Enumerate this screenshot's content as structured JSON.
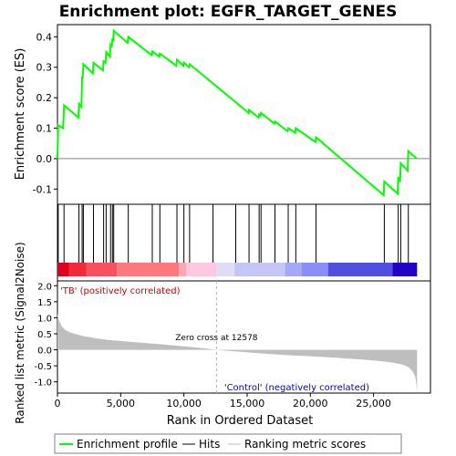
{
  "chart_data": {
    "type": "line",
    "title": "Enrichment plot: EGFR_TARGET_GENES",
    "xlabel": "Rank in Ordered Dataset",
    "es_panel": {
      "ylabel": "Enrichment score (ES)",
      "ylim": [
        -0.15,
        0.44
      ],
      "yticks": [
        -0.1,
        0.0,
        0.1,
        0.2,
        0.3,
        0.4
      ],
      "ytick_labels": [
        "-0.1",
        "0.0",
        "0.1",
        "0.2",
        "0.3",
        "0.4"
      ],
      "grid": false,
      "series_name": "Enrichment profile",
      "color": "#00ff00",
      "points": [
        [
          0,
          0.0
        ],
        [
          60,
          0.11
        ],
        [
          450,
          0.1
        ],
        [
          520,
          0.175
        ],
        [
          1650,
          0.135
        ],
        [
          1700,
          0.18
        ],
        [
          1900,
          0.17
        ],
        [
          1950,
          0.27
        ],
        [
          2000,
          0.265
        ],
        [
          2050,
          0.31
        ],
        [
          2800,
          0.28
        ],
        [
          2850,
          0.315
        ],
        [
          3600,
          0.29
        ],
        [
          3650,
          0.32
        ],
        [
          3800,
          0.315
        ],
        [
          3850,
          0.35
        ],
        [
          4150,
          0.335
        ],
        [
          4200,
          0.375
        ],
        [
          4300,
          0.37
        ],
        [
          4350,
          0.395
        ],
        [
          4400,
          0.385
        ],
        [
          4450,
          0.42
        ],
        [
          5550,
          0.38
        ],
        [
          5600,
          0.4
        ],
        [
          7450,
          0.34
        ],
        [
          7500,
          0.352
        ],
        [
          8050,
          0.335
        ],
        [
          8100,
          0.345
        ],
        [
          9400,
          0.305
        ],
        [
          9450,
          0.325
        ],
        [
          9950,
          0.305
        ],
        [
          10000,
          0.315
        ],
        [
          10400,
          0.3
        ],
        [
          10450,
          0.31
        ],
        [
          14100,
          0.185
        ],
        [
          15100,
          0.15
        ],
        [
          15150,
          0.16
        ],
        [
          15900,
          0.135
        ],
        [
          15950,
          0.145
        ],
        [
          16050,
          0.14
        ],
        [
          16100,
          0.15
        ],
        [
          17150,
          0.115
        ],
        [
          17200,
          0.122
        ],
        [
          18200,
          0.09
        ],
        [
          18250,
          0.1
        ],
        [
          18800,
          0.085
        ],
        [
          18850,
          0.1
        ],
        [
          20400,
          0.055
        ],
        [
          20450,
          0.07
        ],
        [
          25800,
          -0.12
        ],
        [
          25850,
          -0.075
        ],
        [
          26900,
          -0.115
        ],
        [
          26950,
          -0.06
        ],
        [
          27100,
          -0.075
        ],
        [
          27150,
          -0.015
        ],
        [
          27700,
          -0.04
        ],
        [
          27750,
          0.025
        ],
        [
          28400,
          0.0
        ]
      ]
    },
    "hits_panel": {
      "series_name": "Hits",
      "color": "#000000",
      "positions": [
        60,
        520,
        1700,
        1950,
        2050,
        2850,
        3650,
        3850,
        4200,
        4350,
        4450,
        5600,
        7500,
        8100,
        9450,
        10000,
        10450,
        12300,
        14100,
        15150,
        15950,
        16100,
        17200,
        18250,
        18850,
        20450,
        25850,
        26950,
        27150,
        27750
      ]
    },
    "metric_panel": {
      "ylabel": "Ranked list metric (Signal2Noise)",
      "ylim": [
        -1.35,
        2.15
      ],
      "yticks": [
        -1.0,
        -0.5,
        0.0,
        0.5,
        1.0,
        1.5,
        2.0
      ],
      "ytick_labels": [
        "-1.0",
        "-0.5",
        "0.0",
        "0.5",
        "1.0",
        "1.5",
        "2.0"
      ],
      "series_name": "Ranking metric scores",
      "fill_color": "#bebebe",
      "zero_cross": 12578,
      "zero_cross_label": "Zero cross at 12578",
      "positive_label": "'TB' (positively correlated)",
      "negative_label": "'Control' (negatively correlated)",
      "points": [
        [
          0,
          1.15
        ],
        [
          100,
          0.95
        ],
        [
          300,
          0.75
        ],
        [
          600,
          0.62
        ],
        [
          1000,
          0.54
        ],
        [
          2000,
          0.43
        ],
        [
          3000,
          0.36
        ],
        [
          4000,
          0.31
        ],
        [
          6000,
          0.24
        ],
        [
          8000,
          0.18
        ],
        [
          10000,
          0.11
        ],
        [
          11500,
          0.05
        ],
        [
          12578,
          0.0
        ],
        [
          14000,
          -0.05
        ],
        [
          16000,
          -0.11
        ],
        [
          18000,
          -0.16
        ],
        [
          20000,
          -0.2
        ],
        [
          22000,
          -0.25
        ],
        [
          24000,
          -0.3
        ],
        [
          25500,
          -0.35
        ],
        [
          26500,
          -0.4
        ],
        [
          27300,
          -0.46
        ],
        [
          27800,
          -0.55
        ],
        [
          28100,
          -0.68
        ],
        [
          28300,
          -0.85
        ],
        [
          28380,
          -1.05
        ],
        [
          28420,
          -1.25
        ],
        [
          28440,
          -1.25
        ]
      ]
    },
    "xlim": [
      0,
      29500
    ],
    "xticks": [
      0,
      5000,
      10000,
      15000,
      20000,
      25000
    ],
    "xtick_labels": [
      "0",
      "5,000",
      "10,000",
      "15,000",
      "20,000",
      "25,000"
    ],
    "color_bar": {
      "segments": [
        {
          "from": 0,
          "to": 900,
          "color": "#e0001e"
        },
        {
          "from": 900,
          "to": 2300,
          "color": "#f02a3a"
        },
        {
          "from": 2300,
          "to": 4700,
          "color": "#f85060"
        },
        {
          "from": 4700,
          "to": 9600,
          "color": "#ff7880"
        },
        {
          "from": 9600,
          "to": 10200,
          "color": "#ffa6b0"
        },
        {
          "from": 10200,
          "to": 12578,
          "color": "#ffc8e0"
        },
        {
          "from": 12578,
          "to": 14000,
          "color": "#e0dcf6"
        },
        {
          "from": 14000,
          "to": 18000,
          "color": "#c4c6f6"
        },
        {
          "from": 18000,
          "to": 19300,
          "color": "#a4a8f8"
        },
        {
          "from": 19300,
          "to": 21400,
          "color": "#8a8ef8"
        },
        {
          "from": 21400,
          "to": 26500,
          "color": "#5050e0"
        },
        {
          "from": 26500,
          "to": 28440,
          "color": "#2200c8"
        }
      ]
    },
    "legend": {
      "placement": "bottom",
      "items": [
        {
          "label": "Enrichment profile",
          "color": "#00ff00"
        },
        {
          "label": "Hits",
          "color": "#000000"
        },
        {
          "label": "Ranking metric scores",
          "color": "#bebebe"
        }
      ]
    }
  }
}
